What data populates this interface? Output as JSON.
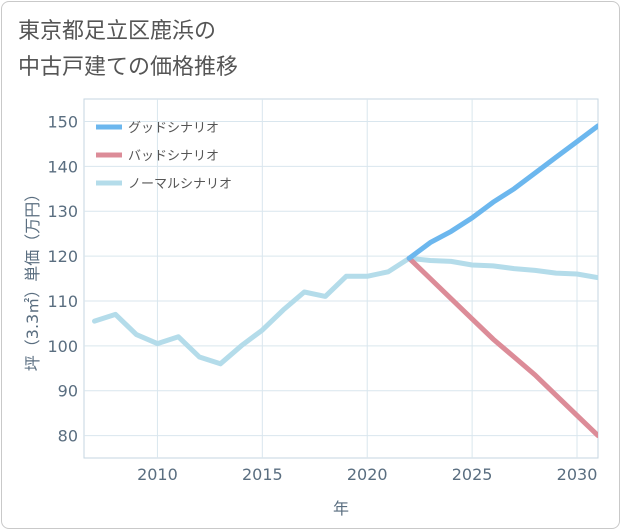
{
  "title": "東京都足立区鹿浜の\n中古戸建ての価格推移",
  "chart_data": {
    "type": "line",
    "title": "東京都足立区鹿浜の\n中古戸建ての価格推移",
    "xlabel": "年",
    "ylabel": "坪（3.3㎡）単価（万円）",
    "xlim": [
      2006.5,
      2031
    ],
    "ylim": [
      75,
      155
    ],
    "x_ticks": [
      2010,
      2015,
      2020,
      2025,
      2030
    ],
    "y_ticks": [
      80,
      90,
      100,
      110,
      120,
      130,
      140,
      150
    ],
    "grid": true,
    "legend_position": "top-left",
    "series": [
      {
        "name": "グッドシナリオ",
        "color": "#6cb7ee",
        "x": [
          2022,
          2023,
          2024,
          2025,
          2026,
          2027,
          2028,
          2029,
          2030,
          2031
        ],
        "y": [
          119.5,
          123,
          125.5,
          128.5,
          132,
          135,
          138.5,
          142,
          145.5,
          149
        ]
      },
      {
        "name": "バッドシナリオ",
        "color": "#dc8c98",
        "x": [
          2022,
          2023,
          2024,
          2025,
          2026,
          2027,
          2028,
          2029,
          2030,
          2031
        ],
        "y": [
          119.5,
          115,
          110.5,
          106,
          101.5,
          97.5,
          93.5,
          89,
          84.5,
          80
        ]
      },
      {
        "name": "ノーマルシナリオ",
        "color": "#b4dcea",
        "x": [
          2007,
          2008,
          2009,
          2010,
          2011,
          2012,
          2013,
          2014,
          2015,
          2016,
          2017,
          2018,
          2019,
          2020,
          2021,
          2022,
          2023,
          2024,
          2025,
          2026,
          2027,
          2028,
          2029,
          2030,
          2031
        ],
        "y": [
          105.5,
          107,
          102.5,
          100.5,
          102,
          97.5,
          96,
          100,
          103.5,
          108,
          112,
          111,
          115.5,
          115.5,
          116.5,
          119.5,
          119,
          118.8,
          118,
          117.8,
          117.2,
          116.8,
          116.2,
          116,
          115.2
        ]
      }
    ]
  }
}
